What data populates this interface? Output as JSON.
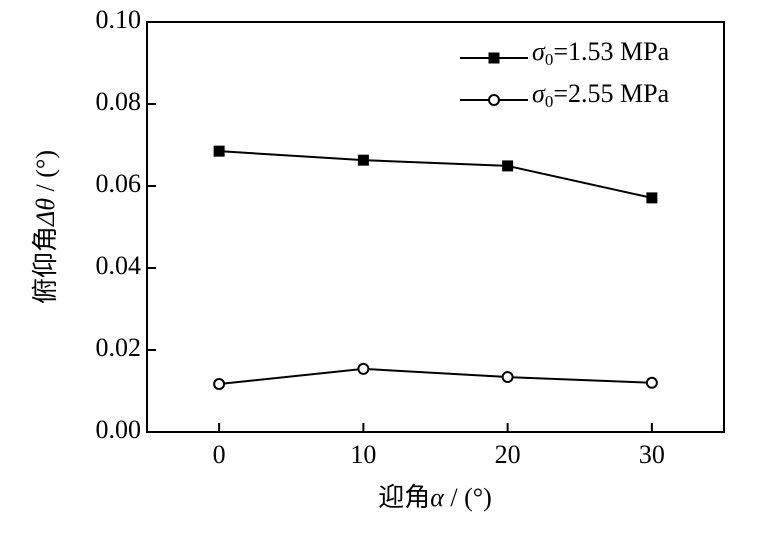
{
  "chart_data": {
    "type": "line",
    "x_label": [
      "迎角",
      "α",
      " / (°)"
    ],
    "y_label": [
      "俯仰角",
      "Δθ",
      " / (°)"
    ],
    "x": [
      0,
      10,
      20,
      30
    ],
    "series": [
      {
        "name": "σ0=1.53 MPa",
        "color": "#000000",
        "marker": "square",
        "values": [
          0.0685,
          0.0663,
          0.0649,
          0.0571
        ]
      },
      {
        "name": "σ0=2.55 MPa",
        "color": "#000000",
        "marker": "open-circle",
        "values": [
          0.0117,
          0.0154,
          0.0134,
          0.012
        ]
      }
    ],
    "xlim": [
      -5,
      35
    ],
    "xticks": [
      0,
      10,
      20,
      30
    ],
    "ylim": [
      0,
      0.1
    ],
    "yticks": [
      {
        "value": 0,
        "label": "0.00"
      },
      {
        "value": 0.02,
        "label": "0.02"
      },
      {
        "value": 0.04,
        "label": "0.04"
      },
      {
        "value": 0.06,
        "label": "0.06"
      },
      {
        "value": 0.08,
        "label": "0.08"
      },
      {
        "value": 0.1,
        "label": "0.10"
      }
    ],
    "legend": "upper-right",
    "grid": false
  }
}
